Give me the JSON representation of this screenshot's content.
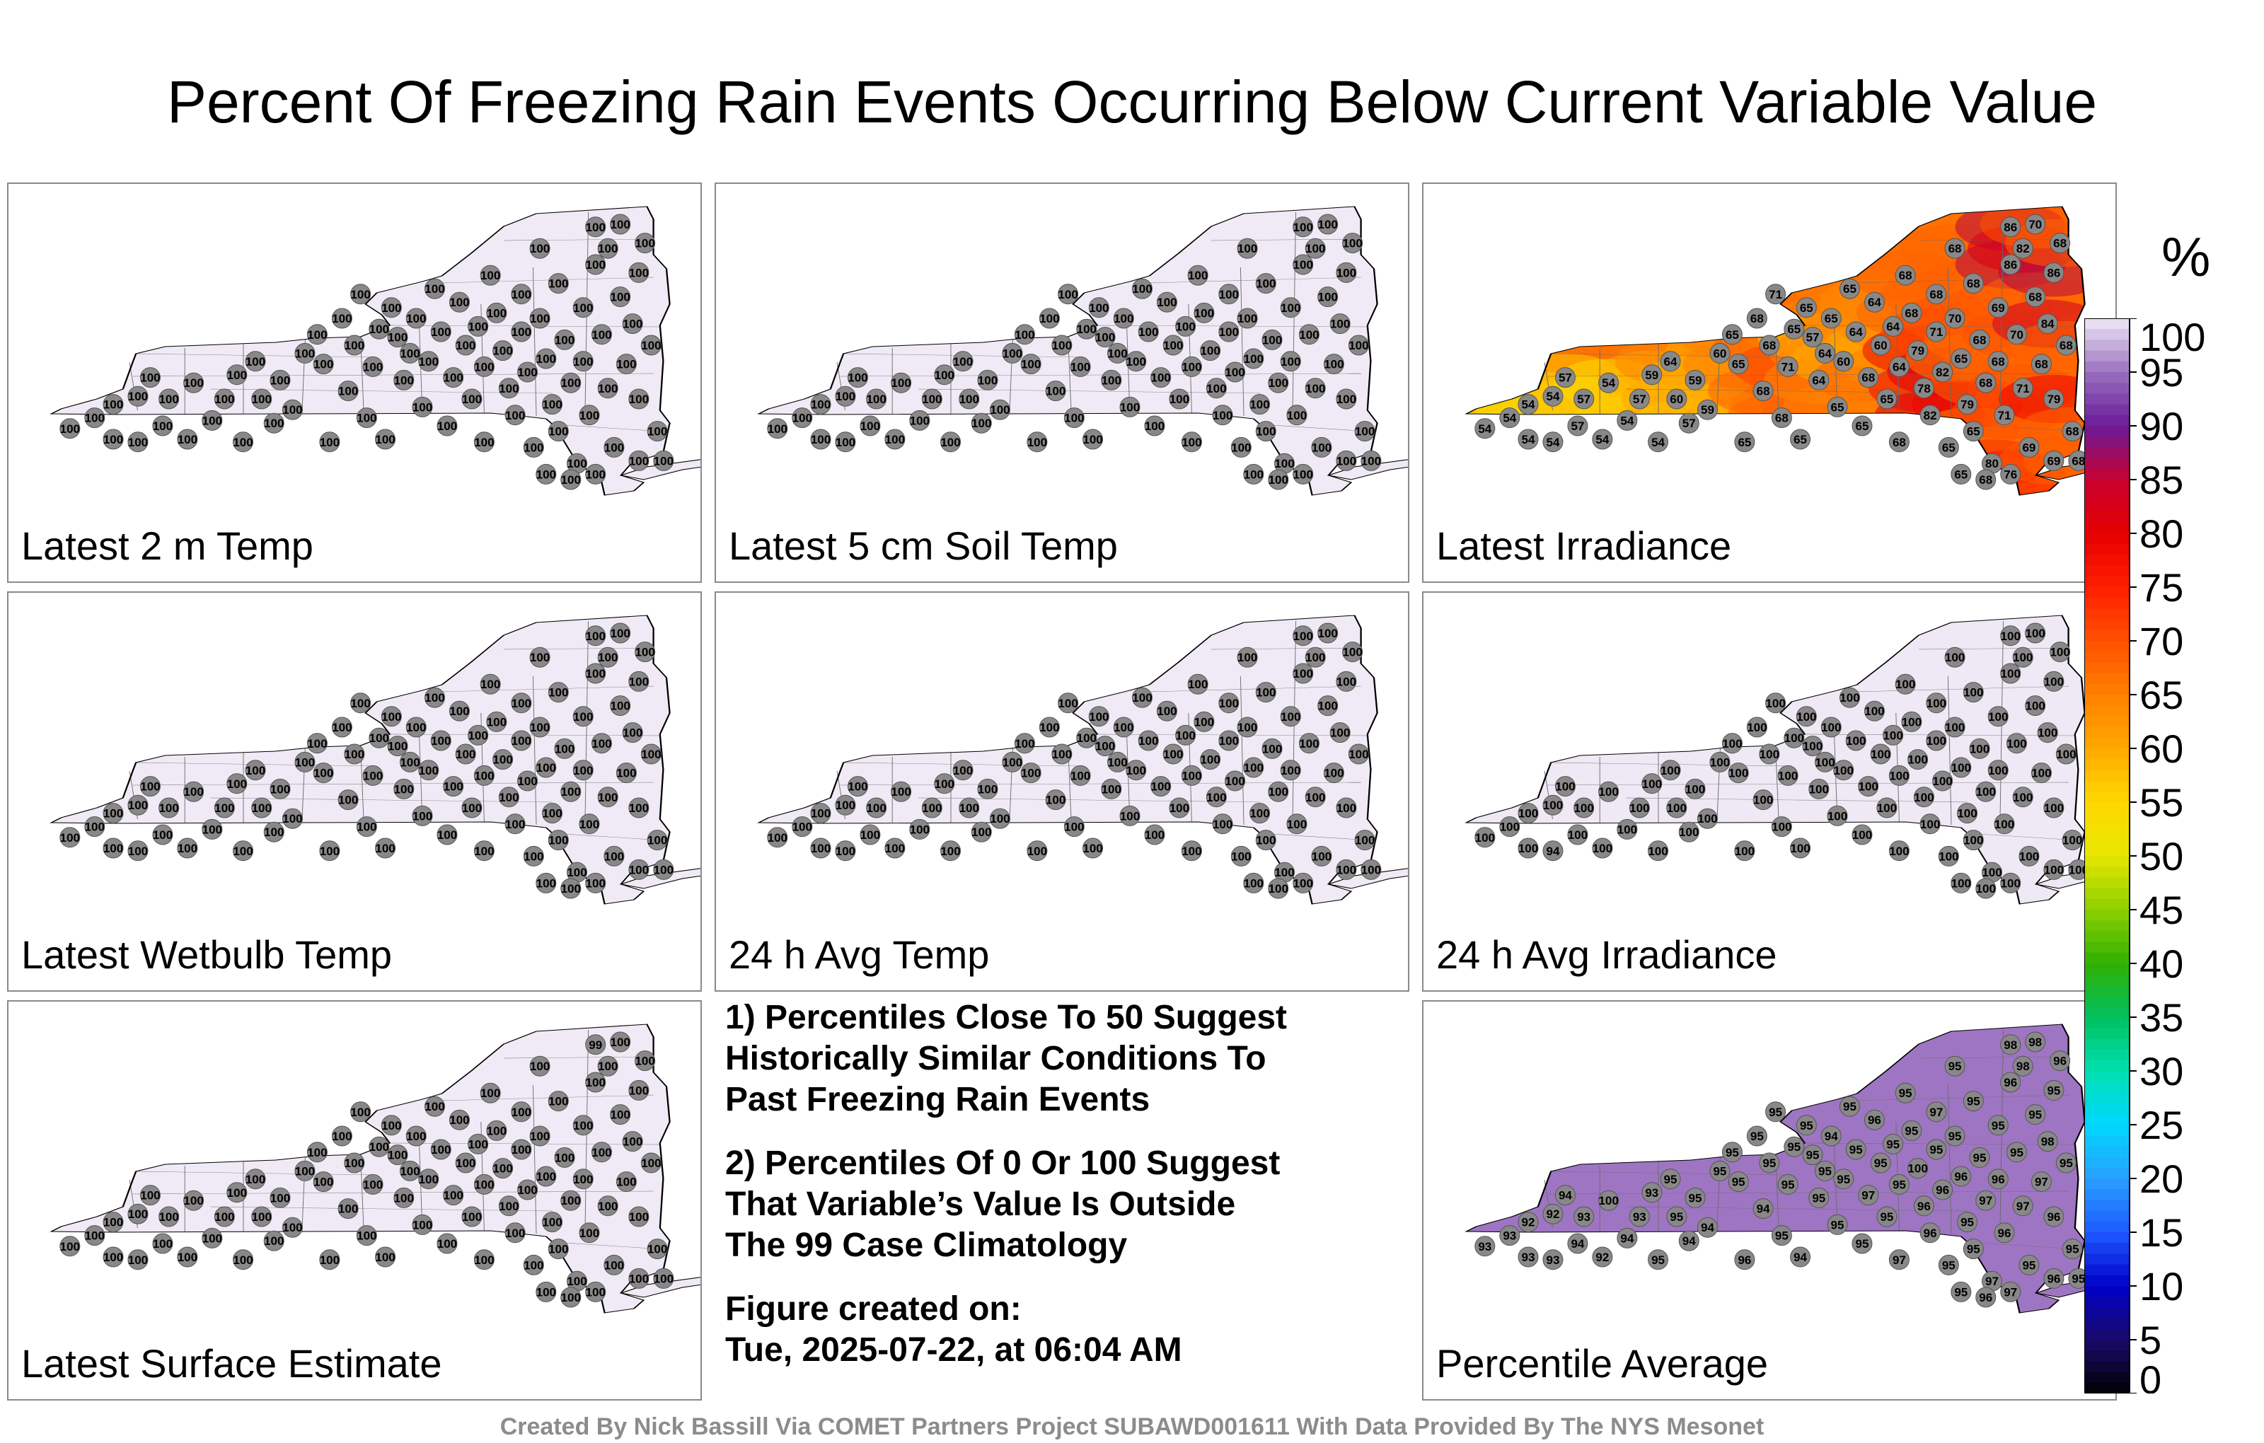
{
  "title": "Percent Of Freezing Rain Events Occurring Below Current Variable Value",
  "colorbar": {
    "unit": "%",
    "ticks": [
      "100",
      "95",
      "90",
      "85",
      "80",
      "75",
      "70",
      "65",
      "60",
      "55",
      "50",
      "45",
      "40",
      "35",
      "30",
      "25",
      "20",
      "15",
      "10",
      "5",
      "0"
    ]
  },
  "panels": [
    {
      "label": "Latest 2 m Temp",
      "values": [
        "100",
        "100",
        "100",
        "100",
        "100",
        "100",
        "100",
        "100",
        "100",
        "100",
        "100",
        "100",
        "100",
        "100",
        "100",
        "100",
        "100",
        "100",
        "100",
        "100",
        "100",
        "100",
        "100",
        "100",
        "100",
        "100",
        "100",
        "100",
        "100",
        "100",
        "100",
        "100",
        "100",
        "100",
        "100",
        "100",
        "100",
        "100",
        "100",
        "100",
        "100",
        "100",
        "100",
        "100",
        "100",
        "100",
        "100",
        "100",
        "100",
        "100",
        "100",
        "100",
        "100",
        "100",
        "100",
        "100",
        "100",
        "100",
        "100",
        "100",
        "100",
        "100",
        "100",
        "100",
        "100",
        "100",
        "100",
        "100",
        "100",
        "100",
        "100",
        "100",
        "100",
        "100",
        "100",
        "100",
        "100",
        "100",
        "100",
        "100",
        "100",
        "100",
        "100",
        "100",
        "100",
        "100",
        "100",
        "100",
        "100",
        "100"
      ]
    },
    {
      "label": "Latest 5 cm Soil Temp",
      "values": [
        "100",
        "100",
        "100",
        "100",
        "100",
        "100",
        "100",
        "100",
        "100",
        "100",
        "100",
        "100",
        "100",
        "100",
        "100",
        "100",
        "100",
        "100",
        "100",
        "100",
        "100",
        "100",
        "100",
        "100",
        "100",
        "100",
        "100",
        "100",
        "100",
        "100",
        "100",
        "100",
        "100",
        "100",
        "100",
        "100",
        "100",
        "100",
        "100",
        "100",
        "100",
        "100",
        "100",
        "100",
        "100",
        "100",
        "100",
        "100",
        "100",
        "100",
        "100",
        "100",
        "100",
        "100",
        "100",
        "100",
        "100",
        "100",
        "100",
        "100",
        "100",
        "100",
        "100",
        "100",
        "100",
        "100",
        "100",
        "100",
        "100",
        "100",
        "100",
        "100",
        "100",
        "100",
        "100",
        "100",
        "100",
        "100",
        "100",
        "100",
        "100",
        "100",
        "100",
        "100",
        "100",
        "100",
        "100",
        "100",
        "100",
        "100"
      ]
    },
    {
      "label": "Latest Irradiance",
      "values": [
        "54",
        "54",
        "54",
        "54",
        "54",
        "54",
        "57",
        "57",
        "57",
        "54",
        "54",
        "54",
        "57",
        "59",
        "54",
        "64",
        "60",
        "57",
        "59",
        "59",
        "60",
        "65",
        "65",
        "65",
        "68",
        "68",
        "68",
        "71",
        "68",
        "71",
        "65",
        "65",
        "65",
        "57",
        "64",
        "64",
        "65",
        "65",
        "60",
        "65",
        "64",
        "65",
        "68",
        "64",
        "60",
        "65",
        "64",
        "68",
        "64",
        "68",
        "68",
        "79",
        "78",
        "82",
        "68",
        "71",
        "82",
        "65",
        "68",
        "70",
        "65",
        "79",
        "68",
        "65",
        "68",
        "68",
        "80",
        "69",
        "68",
        "71",
        "86",
        "86",
        "70",
        "82",
        "71",
        "69",
        "68",
        "70",
        "68",
        "84",
        "86",
        "79",
        "68",
        "68",
        "68",
        "65",
        "68",
        "76",
        "69",
        "68"
      ]
    },
    {
      "label": "Latest Wetbulb Temp",
      "values": [
        "100",
        "100",
        "100",
        "100",
        "100",
        "100",
        "100",
        "100",
        "100",
        "100",
        "100",
        "100",
        "100",
        "100",
        "100",
        "100",
        "100",
        "100",
        "100",
        "100",
        "100",
        "100",
        "100",
        "100",
        "100",
        "100",
        "100",
        "100",
        "100",
        "100",
        "100",
        "100",
        "100",
        "100",
        "100",
        "100",
        "100",
        "100",
        "100",
        "100",
        "100",
        "100",
        "100",
        "100",
        "100",
        "100",
        "100",
        "100",
        "100",
        "100",
        "100",
        "100",
        "100",
        "100",
        "100",
        "100",
        "100",
        "100",
        "100",
        "100",
        "100",
        "100",
        "100",
        "100",
        "100",
        "100",
        "100",
        "100",
        "100",
        "100",
        "100",
        "100",
        "100",
        "100",
        "100",
        "100",
        "100",
        "100",
        "100",
        "100",
        "100",
        "100",
        "100",
        "100",
        "100",
        "100",
        "100",
        "100",
        "100",
        "100"
      ]
    },
    {
      "label": "24 h Avg Temp",
      "values": [
        "100",
        "100",
        "100",
        "100",
        "100",
        "100",
        "100",
        "100",
        "100",
        "100",
        "100",
        "100",
        "100",
        "100",
        "100",
        "100",
        "100",
        "100",
        "100",
        "100",
        "100",
        "100",
        "100",
        "100",
        "100",
        "100",
        "100",
        "100",
        "100",
        "100",
        "100",
        "100",
        "100",
        "100",
        "100",
        "100",
        "100",
        "100",
        "100",
        "100",
        "100",
        "100",
        "100",
        "100",
        "100",
        "100",
        "100",
        "100",
        "100",
        "100",
        "100",
        "100",
        "100",
        "100",
        "100",
        "100",
        "100",
        "100",
        "100",
        "100",
        "100",
        "100",
        "100",
        "100",
        "100",
        "100",
        "100",
        "100",
        "100",
        "100",
        "100",
        "100",
        "100",
        "100",
        "100",
        "100",
        "100",
        "100",
        "100",
        "100",
        "100",
        "100",
        "100",
        "100",
        "100",
        "100",
        "100",
        "100",
        "100",
        "100"
      ]
    },
    {
      "label": "24 h Avg Irradiance",
      "values": [
        "100",
        "100",
        "100",
        "100",
        "100",
        "94",
        "100",
        "100",
        "100",
        "100",
        "100",
        "100",
        "100",
        "100",
        "100",
        "100",
        "100",
        "100",
        "100",
        "100",
        "100",
        "100",
        "100",
        "100",
        "100",
        "100",
        "100",
        "100",
        "100",
        "100",
        "100",
        "100",
        "100",
        "100",
        "100",
        "100",
        "100",
        "100",
        "100",
        "100",
        "100",
        "100",
        "100",
        "100",
        "100",
        "100",
        "100",
        "100",
        "100",
        "100",
        "100",
        "100",
        "100",
        "100",
        "100",
        "100",
        "100",
        "100",
        "100",
        "100",
        "100",
        "100",
        "100",
        "100",
        "100",
        "100",
        "100",
        "100",
        "100",
        "100",
        "100",
        "100",
        "100",
        "100",
        "100",
        "100",
        "100",
        "100",
        "100",
        "100",
        "100",
        "100",
        "100",
        "100",
        "100",
        "100",
        "100",
        "100",
        "100",
        "100"
      ]
    },
    {
      "label": "Latest Surface Estimate",
      "values": [
        "100",
        "100",
        "100",
        "100",
        "100",
        "100",
        "100",
        "100",
        "100",
        "100",
        "100",
        "100",
        "100",
        "100",
        "100",
        "100",
        "100",
        "100",
        "100",
        "100",
        "100",
        "100",
        "100",
        "100",
        "100",
        "100",
        "100",
        "100",
        "100",
        "100",
        "100",
        "100",
        "100",
        "100",
        "100",
        "100",
        "100",
        "100",
        "100",
        "100",
        "100",
        "100",
        "100",
        "100",
        "100",
        "100",
        "100",
        "100",
        "100",
        "100",
        "100",
        "100",
        "100",
        "100",
        "100",
        "100",
        "100",
        "100",
        "100",
        "100",
        "100",
        "100",
        "100",
        "100",
        "100",
        "100",
        "100",
        "100",
        "100",
        "100",
        "99",
        "100",
        "100",
        "100",
        "100",
        "100",
        "100",
        "100",
        "100",
        "100",
        "100",
        "100",
        "100",
        "100",
        "100",
        "100",
        "100",
        "100",
        "100",
        "100"
      ]
    },
    {
      "label": "Percentile Average",
      "values": [
        "93",
        "93",
        "93",
        "92",
        "92",
        "93",
        "94",
        "94",
        "93",
        "92",
        "100",
        "94",
        "93",
        "93",
        "95",
        "95",
        "95",
        "94",
        "95",
        "94",
        "95",
        "95",
        "95",
        "96",
        "95",
        "94",
        "95",
        "95",
        "95",
        "95",
        "95",
        "94",
        "95",
        "95",
        "95",
        "95",
        "94",
        "95",
        "95",
        "95",
        "95",
        "95",
        "97",
        "96",
        "95",
        "95",
        "95",
        "97",
        "95",
        "95",
        "95",
        "100",
        "96",
        "96",
        "97",
        "95",
        "96",
        "95",
        "95",
        "95",
        "96",
        "95",
        "95",
        "95",
        "95",
        "97",
        "97",
        "95",
        "96",
        "96",
        "98",
        "96",
        "95",
        "98",
        "97",
        "95",
        "95",
        "98",
        "97",
        "98",
        "95",
        "96",
        "96",
        "95",
        "95",
        "95",
        "96",
        "97",
        "96",
        "95"
      ]
    }
  ],
  "notes": [
    "1) Percentiles Close To 50 Suggest\nHistorically Similar Conditions To\nPast Freezing Rain Events",
    "2) Percentiles Of 0 Or 100 Suggest\nThat Variable’s Value Is Outside\nThe 99 Case Climatology",
    "Figure created on:\nTue, 2025-07-22, at 06:04 AM"
  ],
  "credit": "Created By Nick Bassill Via COMET Partners Project SUBAWD001611 With Data Provided By The NYS Mesonet",
  "colors": {
    "uniform_fill": "#efe8f4",
    "station_marker": "#888888",
    "panel_border": "#8a8a8a",
    "credit_text": "#8c8c8c"
  }
}
